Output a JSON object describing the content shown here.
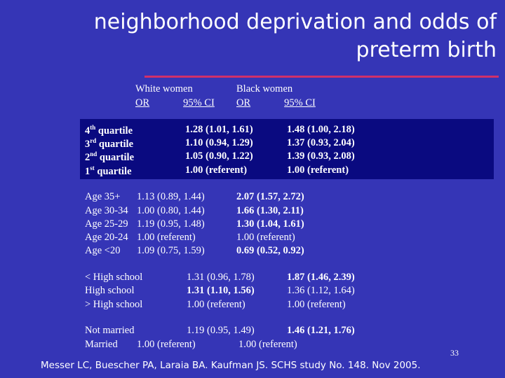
{
  "title": {
    "line1": "neighborhood deprivation and odds of",
    "line2": "preterm birth"
  },
  "colors": {
    "background": "#3535b6",
    "panel": "#0a0a80",
    "rule": "#d0306a"
  },
  "header": {
    "white_women": "White women",
    "black_women": "Black women",
    "or_white": "OR",
    "ci_white": "95% CI",
    "or_black": "OR",
    "ci_black": "95% CI"
  },
  "quartiles": [
    {
      "num": "4",
      "sup": "th",
      "word": "quartile",
      "white": "1.28 (1.01, 1.61)",
      "black": "1.48 (1.00, 2.18)"
    },
    {
      "num": "3",
      "sup": "rd",
      "word": "quartile",
      "white": "1.10 (0.94, 1.29)",
      "black": "1.37 (0.93, 2.04)"
    },
    {
      "num": "2",
      "sup": "nd",
      "word": "quartile",
      "white": "1.05 (0.90, 1.22)",
      "black": "1.39 (0.93, 2.08)"
    },
    {
      "num": "1",
      "sup": "st",
      "word": "quartile",
      "white": "1.00 (referent)",
      "black": "1.00 (referent)"
    }
  ],
  "age": [
    {
      "label": "Age 35+",
      "white": "1.13 (0.89, 1.44)",
      "black": "2.07 (1.57, 2.72)"
    },
    {
      "label": "Age 30-34",
      "white": "1.00 (0.80, 1.44)",
      "black": "1.66 (1.30, 2.11)"
    },
    {
      "label": "Age 25-29",
      "white": "1.19 (0.95, 1.48)",
      "black": "1.30 (1.04, 1.61)"
    },
    {
      "label": "Age 20-24",
      "white": "1.00 (referent)",
      "black": "1.00 (referent)"
    },
    {
      "label": "Age <20",
      "white": "1.09 (0.75, 1.59)",
      "black": "0.69 (0.52, 0.92)"
    }
  ],
  "education": [
    {
      "label": "< High school",
      "white": "1.31 (0.96, 1.78)",
      "black": "1.87 (1.46, 2.39)"
    },
    {
      "label": "High school",
      "white": "1.31 (1.10, 1.56)",
      "black": "1.36 (1.12, 1.64)"
    },
    {
      "label": "> High school",
      "white": "1.00 (referent)",
      "black": "1.00 (referent)"
    }
  ],
  "marital": [
    {
      "label": "Not married",
      "white": "1.19 (0.95, 1.49)",
      "black": "1.46 (1.21, 1.76)"
    },
    {
      "label": "Married",
      "white": "1.00 (referent)",
      "black": "1.00 (referent)"
    }
  ],
  "page_number": "33",
  "footer": "Messer LC, Buescher PA, Laraia BA. Kaufman JS. SCHS study No. 148. Nov 2005."
}
